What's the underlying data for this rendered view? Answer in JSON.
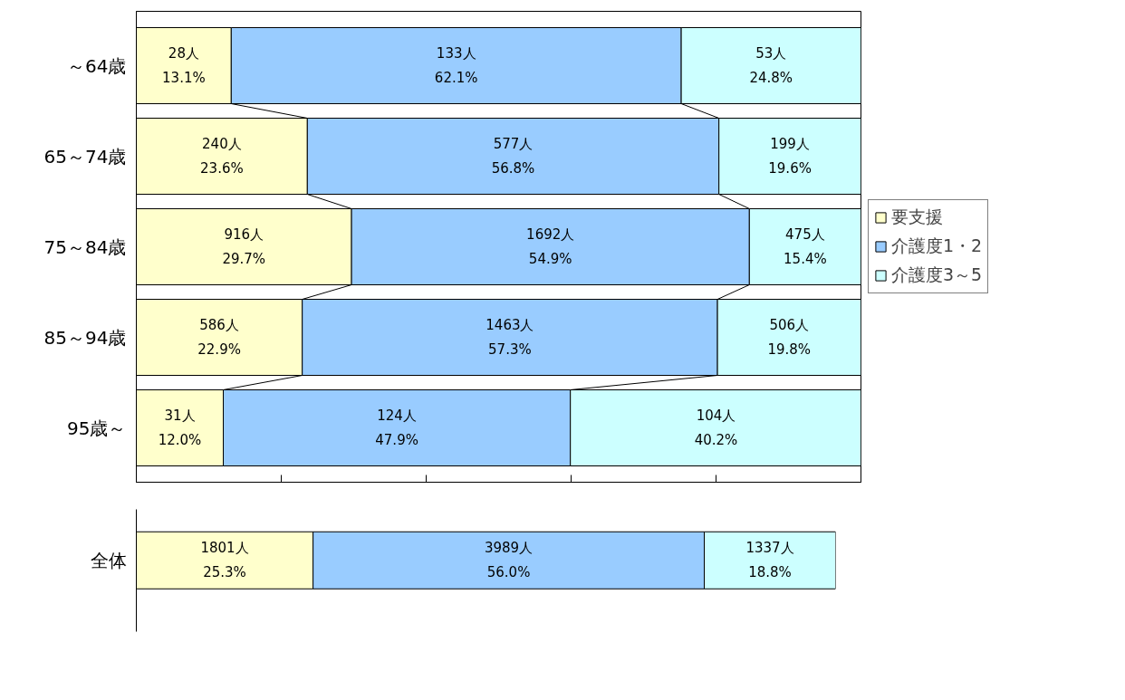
{
  "chart_data": [
    {
      "type": "bar",
      "orientation": "horizontal",
      "stacked": true,
      "categories": [
        "～64歳",
        "65～74歳",
        "75～84歳",
        "85～94歳",
        "95歳～"
      ],
      "series": [
        {
          "name": "要支援",
          "color": "#ffffcc",
          "values": [
            13.1,
            23.6,
            29.7,
            22.9,
            12.0
          ],
          "value_labels": [
            "28人\n13.1%",
            "240人\n23.6%",
            "916人\n29.7%",
            "586人\n22.9%",
            "31人\n12.0%"
          ]
        },
        {
          "name": "介護度1・2",
          "color": "#99ccff",
          "values": [
            62.1,
            56.8,
            54.9,
            57.3,
            47.9
          ],
          "value_labels": [
            "133人\n62.1%",
            "577人\n56.8%",
            "1692人\n54.9%",
            "1463人\n57.3%",
            "124人\n47.9%"
          ]
        },
        {
          "name": "介護度3～5",
          "color": "#ccffff",
          "values": [
            24.8,
            19.6,
            15.4,
            19.8,
            40.2
          ],
          "value_labels": [
            "53人\n24.8%",
            "199人\n19.6%",
            "475人\n15.4%",
            "506人\n19.8%",
            "104人\n40.2%"
          ]
        }
      ],
      "xlim": [
        0,
        100
      ],
      "xticks": [
        {
          "value": 0,
          "label": null
        },
        {
          "value": 20,
          "label": null
        },
        {
          "value": 40,
          "label": null
        },
        {
          "value": 60,
          "label": null
        },
        {
          "value": 80,
          "label": null
        },
        {
          "value": 100,
          "label": null
        }
      ],
      "tick_labels": "y",
      "legend": "right",
      "grid": false
    },
    {
      "type": "bar",
      "orientation": "horizontal",
      "stacked": true,
      "categories": [
        "全体"
      ],
      "series": [
        {
          "color": "#ffffcc",
          "values": [
            25.3
          ],
          "value_labels": [
            "1801人\n25.3%"
          ]
        },
        {
          "color": "#99ccff",
          "values": [
            56.0
          ],
          "value_labels": [
            "3989人\n56.0%"
          ]
        },
        {
          "color": "#ccffff",
          "values": [
            18.8
          ],
          "value_labels": [
            "1337人\n18.8%"
          ]
        }
      ],
      "tick_labels": "y",
      "grid": false
    }
  ]
}
